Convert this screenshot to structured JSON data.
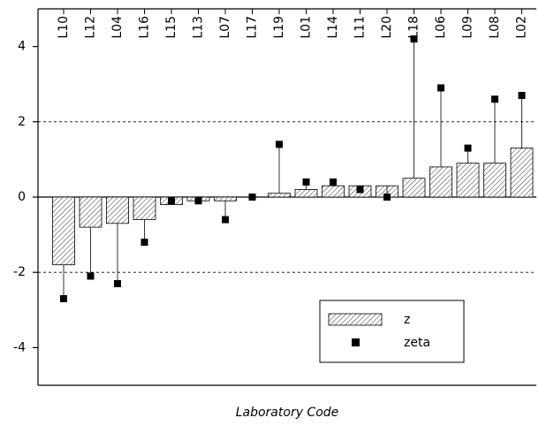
{
  "chart_data": {
    "type": "bar",
    "xlabel": "Laboratory Code",
    "categories": [
      "L10",
      "L12",
      "L04",
      "L16",
      "L15",
      "L13",
      "L07",
      "L17",
      "L19",
      "L01",
      "L14",
      "L11",
      "L20",
      "L18",
      "L06",
      "L09",
      "L08",
      "L02"
    ],
    "series": [
      {
        "name": "z",
        "color": "#000000",
        "style": "hatched-bar",
        "values": [
          -1.8,
          -0.8,
          -0.7,
          -0.6,
          -0.2,
          -0.1,
          -0.1,
          0,
          0.1,
          0.2,
          0.3,
          0.3,
          0.3,
          0.5,
          0.8,
          0.9,
          0.9,
          1.3
        ]
      },
      {
        "name": "zeta",
        "color": "#000000",
        "style": "point",
        "values": [
          -2.7,
          -2.1,
          -2.3,
          -1.2,
          -0.1,
          -0.1,
          -0.6,
          0,
          1.4,
          0.4,
          0.4,
          0.2,
          0,
          4.2,
          2.9,
          1.3,
          2.6,
          2.7
        ]
      }
    ],
    "ylim": [
      -5,
      5
    ],
    "yticks": [
      -4,
      -2,
      0,
      2,
      4
    ],
    "ref_lines": [
      -2,
      2
    ],
    "legend": "lower right"
  }
}
